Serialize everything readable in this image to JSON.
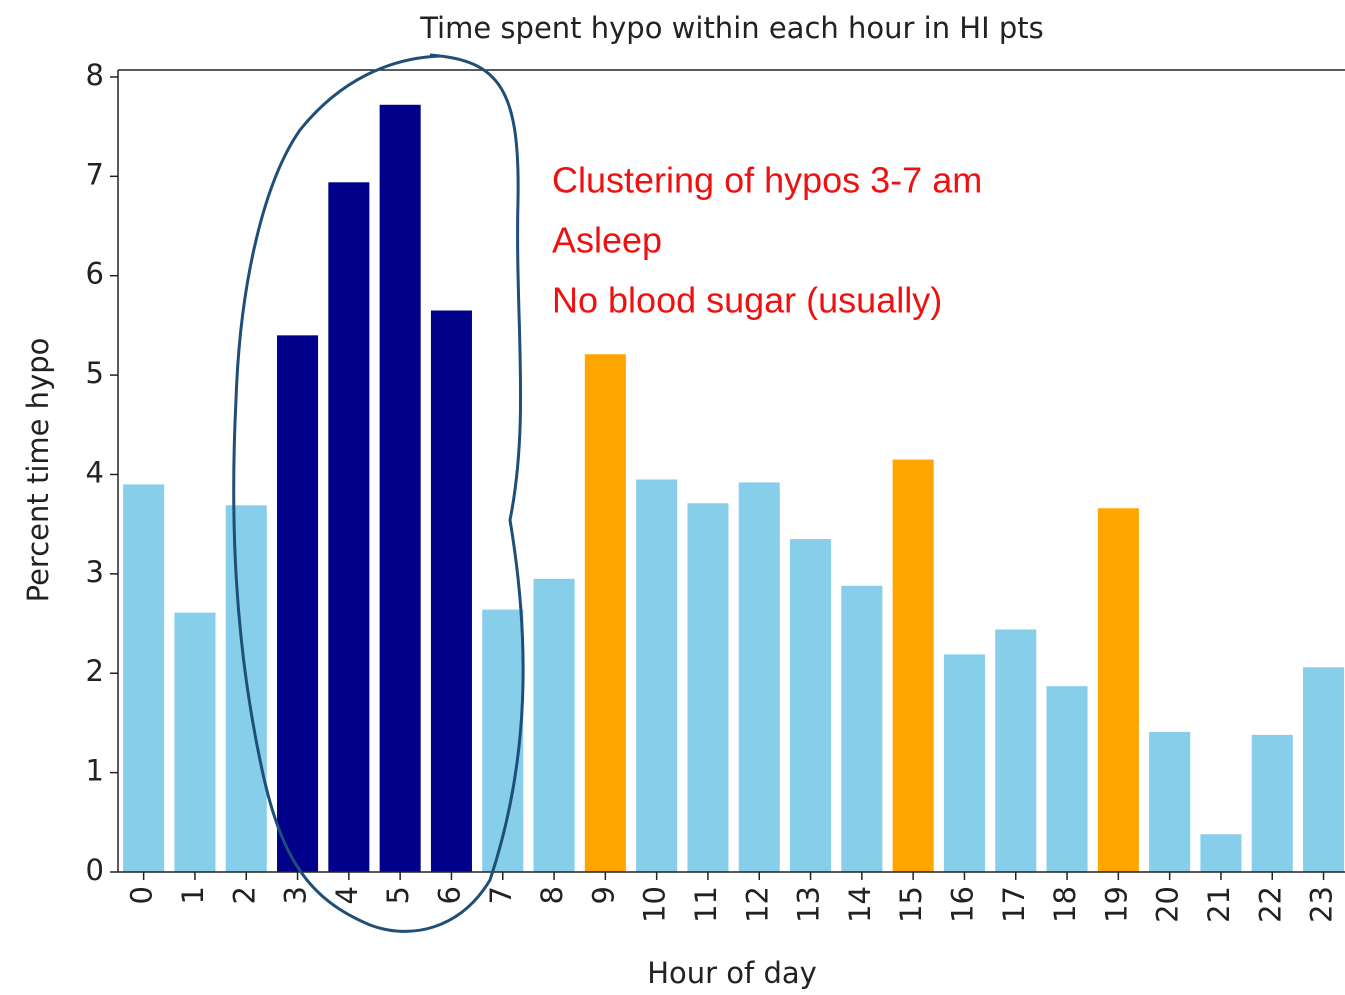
{
  "chart_data": {
    "type": "bar",
    "title": "Time spent hypo within each hour in HI pts",
    "xlabel": "Hour of day",
    "ylabel": "Percent time hypo",
    "categories": [
      "0",
      "1",
      "2",
      "3",
      "4",
      "5",
      "6",
      "7",
      "8",
      "9",
      "10",
      "11",
      "12",
      "13",
      "14",
      "15",
      "16",
      "17",
      "18",
      "19",
      "20",
      "21",
      "22",
      "23"
    ],
    "values": [
      3.9,
      2.61,
      3.69,
      5.4,
      6.94,
      7.72,
      5.65,
      2.64,
      2.95,
      5.21,
      3.95,
      3.71,
      3.92,
      3.35,
      2.88,
      4.15,
      2.19,
      2.44,
      1.87,
      3.66,
      1.41,
      0.38,
      1.38,
      2.06
    ],
    "colors": [
      "#87ceeb",
      "#87ceeb",
      "#87ceeb",
      "#00008b",
      "#00008b",
      "#00008b",
      "#00008b",
      "#87ceeb",
      "#87ceeb",
      "#ffa500",
      "#87ceeb",
      "#87ceeb",
      "#87ceeb",
      "#87ceeb",
      "#87ceeb",
      "#ffa500",
      "#87ceeb",
      "#87ceeb",
      "#87ceeb",
      "#ffa500",
      "#87ceeb",
      "#87ceeb",
      "#87ceeb",
      "#87ceeb"
    ],
    "ylim": [
      0,
      8.07
    ],
    "yticks": [
      0,
      1,
      2,
      3,
      4,
      5,
      6,
      7,
      8
    ],
    "annotations": [
      "Clustering of hypos 3-7 am",
      "Asleep",
      "No blood sugar (usually)"
    ],
    "grid": false
  }
}
